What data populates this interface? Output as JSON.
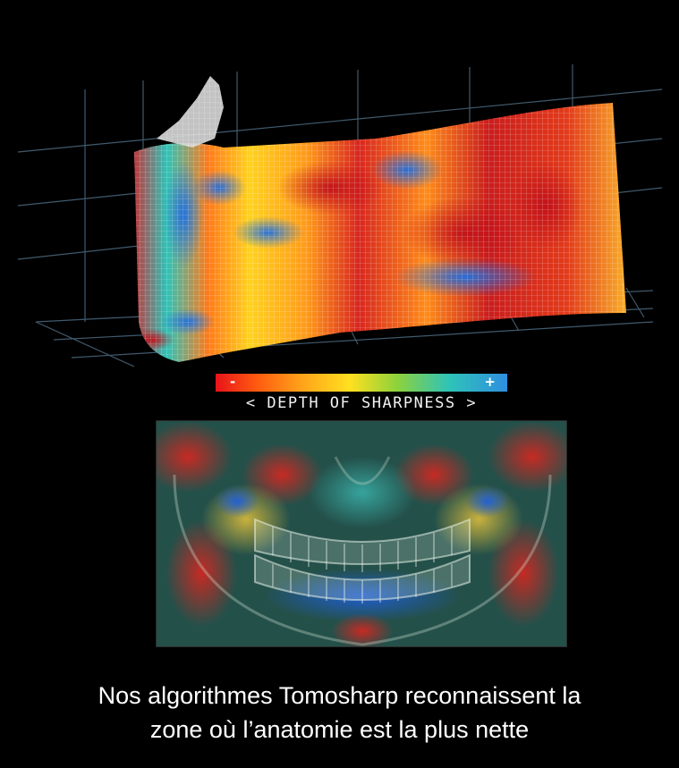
{
  "scale": {
    "minus_label": "-",
    "plus_label": "+",
    "title": "< DEPTH OF SHARPNESS >"
  },
  "caption": {
    "line1": "Nos algorithmes Tomosharp reconnaissent la",
    "line2": "zone où l’anatomie est la plus nette"
  },
  "colors": {
    "background": "#000000",
    "sharp_low": "#e8131a",
    "sharp_mid": "#ffe020",
    "sharp_high": "#2f8fe0",
    "grid_lines": "#5a7a90"
  }
}
